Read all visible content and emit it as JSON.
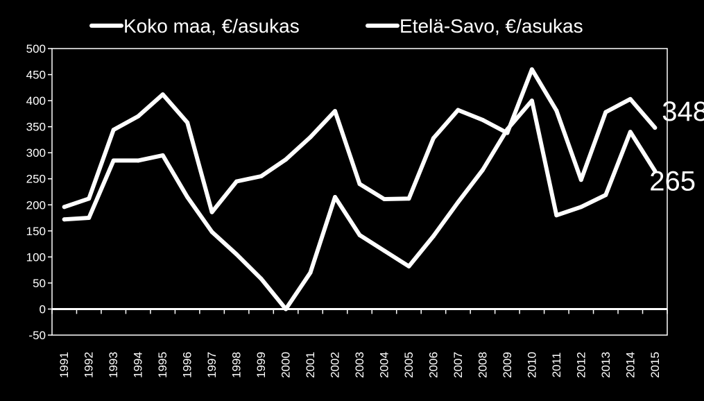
{
  "chart_data": {
    "type": "line",
    "title": "",
    "xlabel": "",
    "ylabel": "",
    "x": [
      "1991",
      "1992",
      "1993",
      "1994",
      "1995",
      "1996",
      "1997",
      "1998",
      "1999",
      "2000",
      "2001",
      "2002",
      "2003",
      "2004",
      "2005",
      "2006",
      "2007",
      "2008",
      "2009",
      "2010",
      "2011",
      "2012",
      "2013",
      "2014",
      "2015"
    ],
    "ylim": [
      -50,
      500
    ],
    "yticks": [
      -50,
      0,
      50,
      100,
      150,
      200,
      250,
      300,
      350,
      400,
      450,
      500
    ],
    "grid": false,
    "legend_position": "top",
    "series": [
      {
        "name": "Koko maa, €/asukas",
        "color": "#ffffff",
        "values": [
          196,
          212,
          344,
          370,
          412,
          358,
          186,
          245,
          255,
          287,
          330,
          380,
          240,
          211,
          212,
          328,
          382,
          363,
          338,
          460,
          381,
          248,
          378,
          403,
          348
        ]
      },
      {
        "name": "Etelä-Savo, €/asukas",
        "color": "#ffffff",
        "values": [
          172,
          175,
          285,
          285,
          295,
          215,
          148,
          105,
          58,
          0,
          70,
          215,
          142,
          112,
          82,
          140,
          205,
          267,
          345,
          400,
          180,
          196,
          219,
          340,
          265
        ]
      }
    ],
    "end_labels": [
      {
        "series": 0,
        "text": "348"
      },
      {
        "series": 1,
        "text": "265"
      }
    ]
  }
}
